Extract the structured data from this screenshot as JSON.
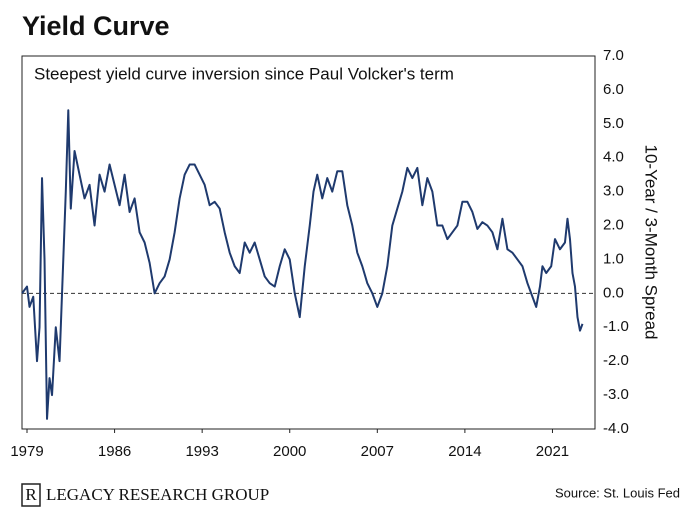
{
  "chart_data": {
    "type": "line",
    "title": "Yield Curve",
    "subtitle": "Steepest yield curve inversion since Paul Volcker's term",
    "y_label": "10-Year / 3-Month Spread",
    "source": "Source: St. Louis Fed",
    "brand": "LEGACY RESEARCH GROUP",
    "brand_mark": "R",
    "x": [
      1978.6,
      1979.0,
      1979.2,
      1979.5,
      1979.8,
      1980.0,
      1980.2,
      1980.4,
      1980.6,
      1980.8,
      1981.0,
      1981.3,
      1981.6,
      1981.9,
      1982.1,
      1982.3,
      1982.5,
      1982.8,
      1983.2,
      1983.6,
      1984.0,
      1984.4,
      1984.8,
      1985.2,
      1985.6,
      1986.0,
      1986.4,
      1986.8,
      1987.2,
      1987.6,
      1988.0,
      1988.4,
      1988.8,
      1989.2,
      1989.6,
      1990.0,
      1990.4,
      1990.8,
      1991.2,
      1991.6,
      1992.0,
      1992.4,
      1992.8,
      1993.2,
      1993.6,
      1994.0,
      1994.4,
      1994.8,
      1995.2,
      1995.6,
      1996.0,
      1996.4,
      1996.8,
      1997.2,
      1997.6,
      1998.0,
      1998.4,
      1998.8,
      1999.2,
      1999.6,
      2000.0,
      2000.4,
      2000.8,
      2001.2,
      2001.6,
      2001.9,
      2002.2,
      2002.6,
      2003.0,
      2003.4,
      2003.8,
      2004.2,
      2004.6,
      2005.0,
      2005.4,
      2005.8,
      2006.2,
      2006.6,
      2007.0,
      2007.4,
      2007.8,
      2008.2,
      2008.6,
      2009.0,
      2009.4,
      2009.8,
      2010.2,
      2010.6,
      2011.0,
      2011.4,
      2011.8,
      2012.2,
      2012.6,
      2013.0,
      2013.4,
      2013.8,
      2014.2,
      2014.6,
      2015.0,
      2015.4,
      2015.8,
      2016.2,
      2016.6,
      2017.0,
      2017.4,
      2017.8,
      2018.2,
      2018.6,
      2019.0,
      2019.4,
      2019.7,
      2020.0,
      2020.2,
      2020.5,
      2020.9,
      2021.2,
      2021.6,
      2022.0,
      2022.2,
      2022.4,
      2022.6,
      2022.8,
      2023.0,
      2023.2,
      2023.4
    ],
    "series": [
      {
        "name": "10-Year / 3-Month Spread",
        "color": "#1f3a6e",
        "values": [
          0.0,
          0.2,
          -0.4,
          -0.1,
          -2.0,
          -1.0,
          3.4,
          1.0,
          -3.7,
          -2.5,
          -3.0,
          -1.0,
          -2.0,
          1.0,
          3.0,
          5.4,
          2.5,
          4.2,
          3.5,
          2.8,
          3.2,
          2.0,
          3.5,
          3.0,
          3.8,
          3.2,
          2.6,
          3.5,
          2.4,
          2.8,
          1.8,
          1.5,
          0.9,
          0.0,
          0.3,
          0.5,
          1.0,
          1.8,
          2.8,
          3.5,
          3.8,
          3.8,
          3.5,
          3.2,
          2.6,
          2.7,
          2.5,
          1.8,
          1.2,
          0.8,
          0.6,
          1.5,
          1.2,
          1.5,
          1.0,
          0.5,
          0.3,
          0.2,
          0.8,
          1.3,
          1.0,
          0.0,
          -0.7,
          0.8,
          2.0,
          3.0,
          3.5,
          2.8,
          3.4,
          3.0,
          3.6,
          3.6,
          2.6,
          2.0,
          1.2,
          0.8,
          0.3,
          0.0,
          -0.4,
          0.0,
          0.8,
          2.0,
          2.5,
          3.0,
          3.7,
          3.4,
          3.7,
          2.6,
          3.4,
          3.0,
          2.0,
          2.0,
          1.6,
          1.8,
          2.0,
          2.7,
          2.7,
          2.4,
          1.9,
          2.1,
          2.0,
          1.8,
          1.3,
          2.2,
          1.3,
          1.2,
          1.0,
          0.8,
          0.3,
          -0.1,
          -0.4,
          0.2,
          0.8,
          0.6,
          0.8,
          1.6,
          1.3,
          1.5,
          2.2,
          1.6,
          0.6,
          0.2,
          -0.7,
          -1.1,
          -0.9
        ]
      }
    ],
    "reference_line": 0,
    "xlim": [
      1978.6,
      2024.4
    ],
    "xticks": [
      1979,
      1986,
      1993,
      2000,
      2007,
      2014,
      2021
    ],
    "ylim": [
      -4,
      7
    ],
    "yticks": [
      {
        "value": 7,
        "label": "7.0"
      },
      {
        "value": 6,
        "label": "6.0"
      },
      {
        "value": 5,
        "label": "5.0"
      },
      {
        "value": 4,
        "label": "4.0"
      },
      {
        "value": 3,
        "label": "3.0"
      },
      {
        "value": 2,
        "label": "2.0"
      },
      {
        "value": 1,
        "label": "1.0"
      },
      {
        "value": 0,
        "label": "0.0"
      },
      {
        "value": -1,
        "label": "-1.0"
      },
      {
        "value": -2,
        "label": "-2.0"
      },
      {
        "value": -3,
        "label": "-3.0"
      },
      {
        "value": -4,
        "label": "-4.0"
      }
    ],
    "y_axis_side": "right",
    "grid": false
  }
}
